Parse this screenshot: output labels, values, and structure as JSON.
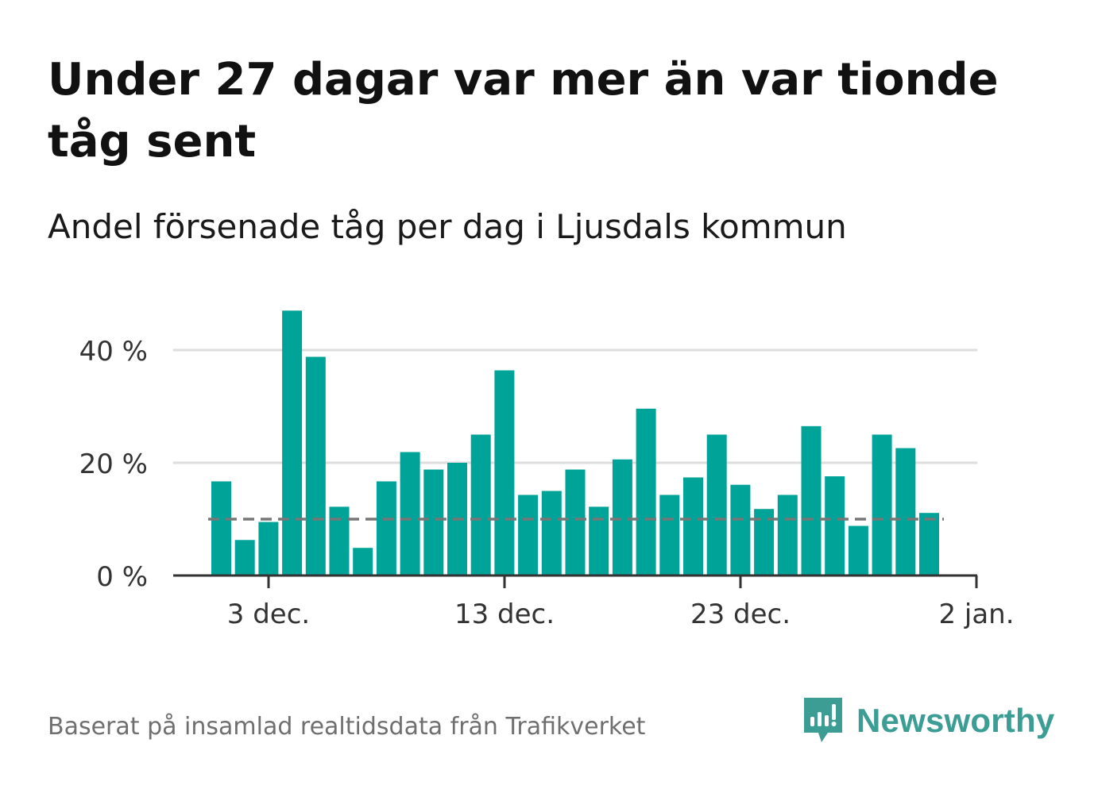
{
  "title": "Under 27 dagar var mer än var tionde tåg sent",
  "subtitle": "Andel försenade tåg per dag i Ljusdals kommun",
  "source": "Baserat på insamlad realtidsdata från Trafikverket",
  "brand": "Newsworthy",
  "colors": {
    "bar": "#00a398",
    "reference_line": "#777777",
    "grid": "#dddddd",
    "axis": "#333333",
    "brand": "#3c9d95"
  },
  "chart_data": {
    "type": "bar",
    "x_ticks": [
      "3 dec.",
      "13 dec.",
      "23 dec.",
      "2 jan."
    ],
    "y_ticks": [
      "0 %",
      "20 %",
      "40 %"
    ],
    "ylim": [
      0,
      40
    ],
    "grid": true,
    "reference_line_value": 10,
    "values": [
      16.7,
      6.3,
      9.5,
      47.0,
      38.8,
      12.2,
      4.9,
      16.7,
      21.9,
      18.8,
      20.0,
      25.0,
      36.4,
      14.3,
      15.0,
      18.8,
      12.2,
      20.6,
      29.6,
      14.3,
      17.4,
      25.0,
      16.1,
      11.8,
      14.3,
      26.5,
      17.6,
      8.8,
      25.0,
      22.6,
      11.1
    ]
  }
}
